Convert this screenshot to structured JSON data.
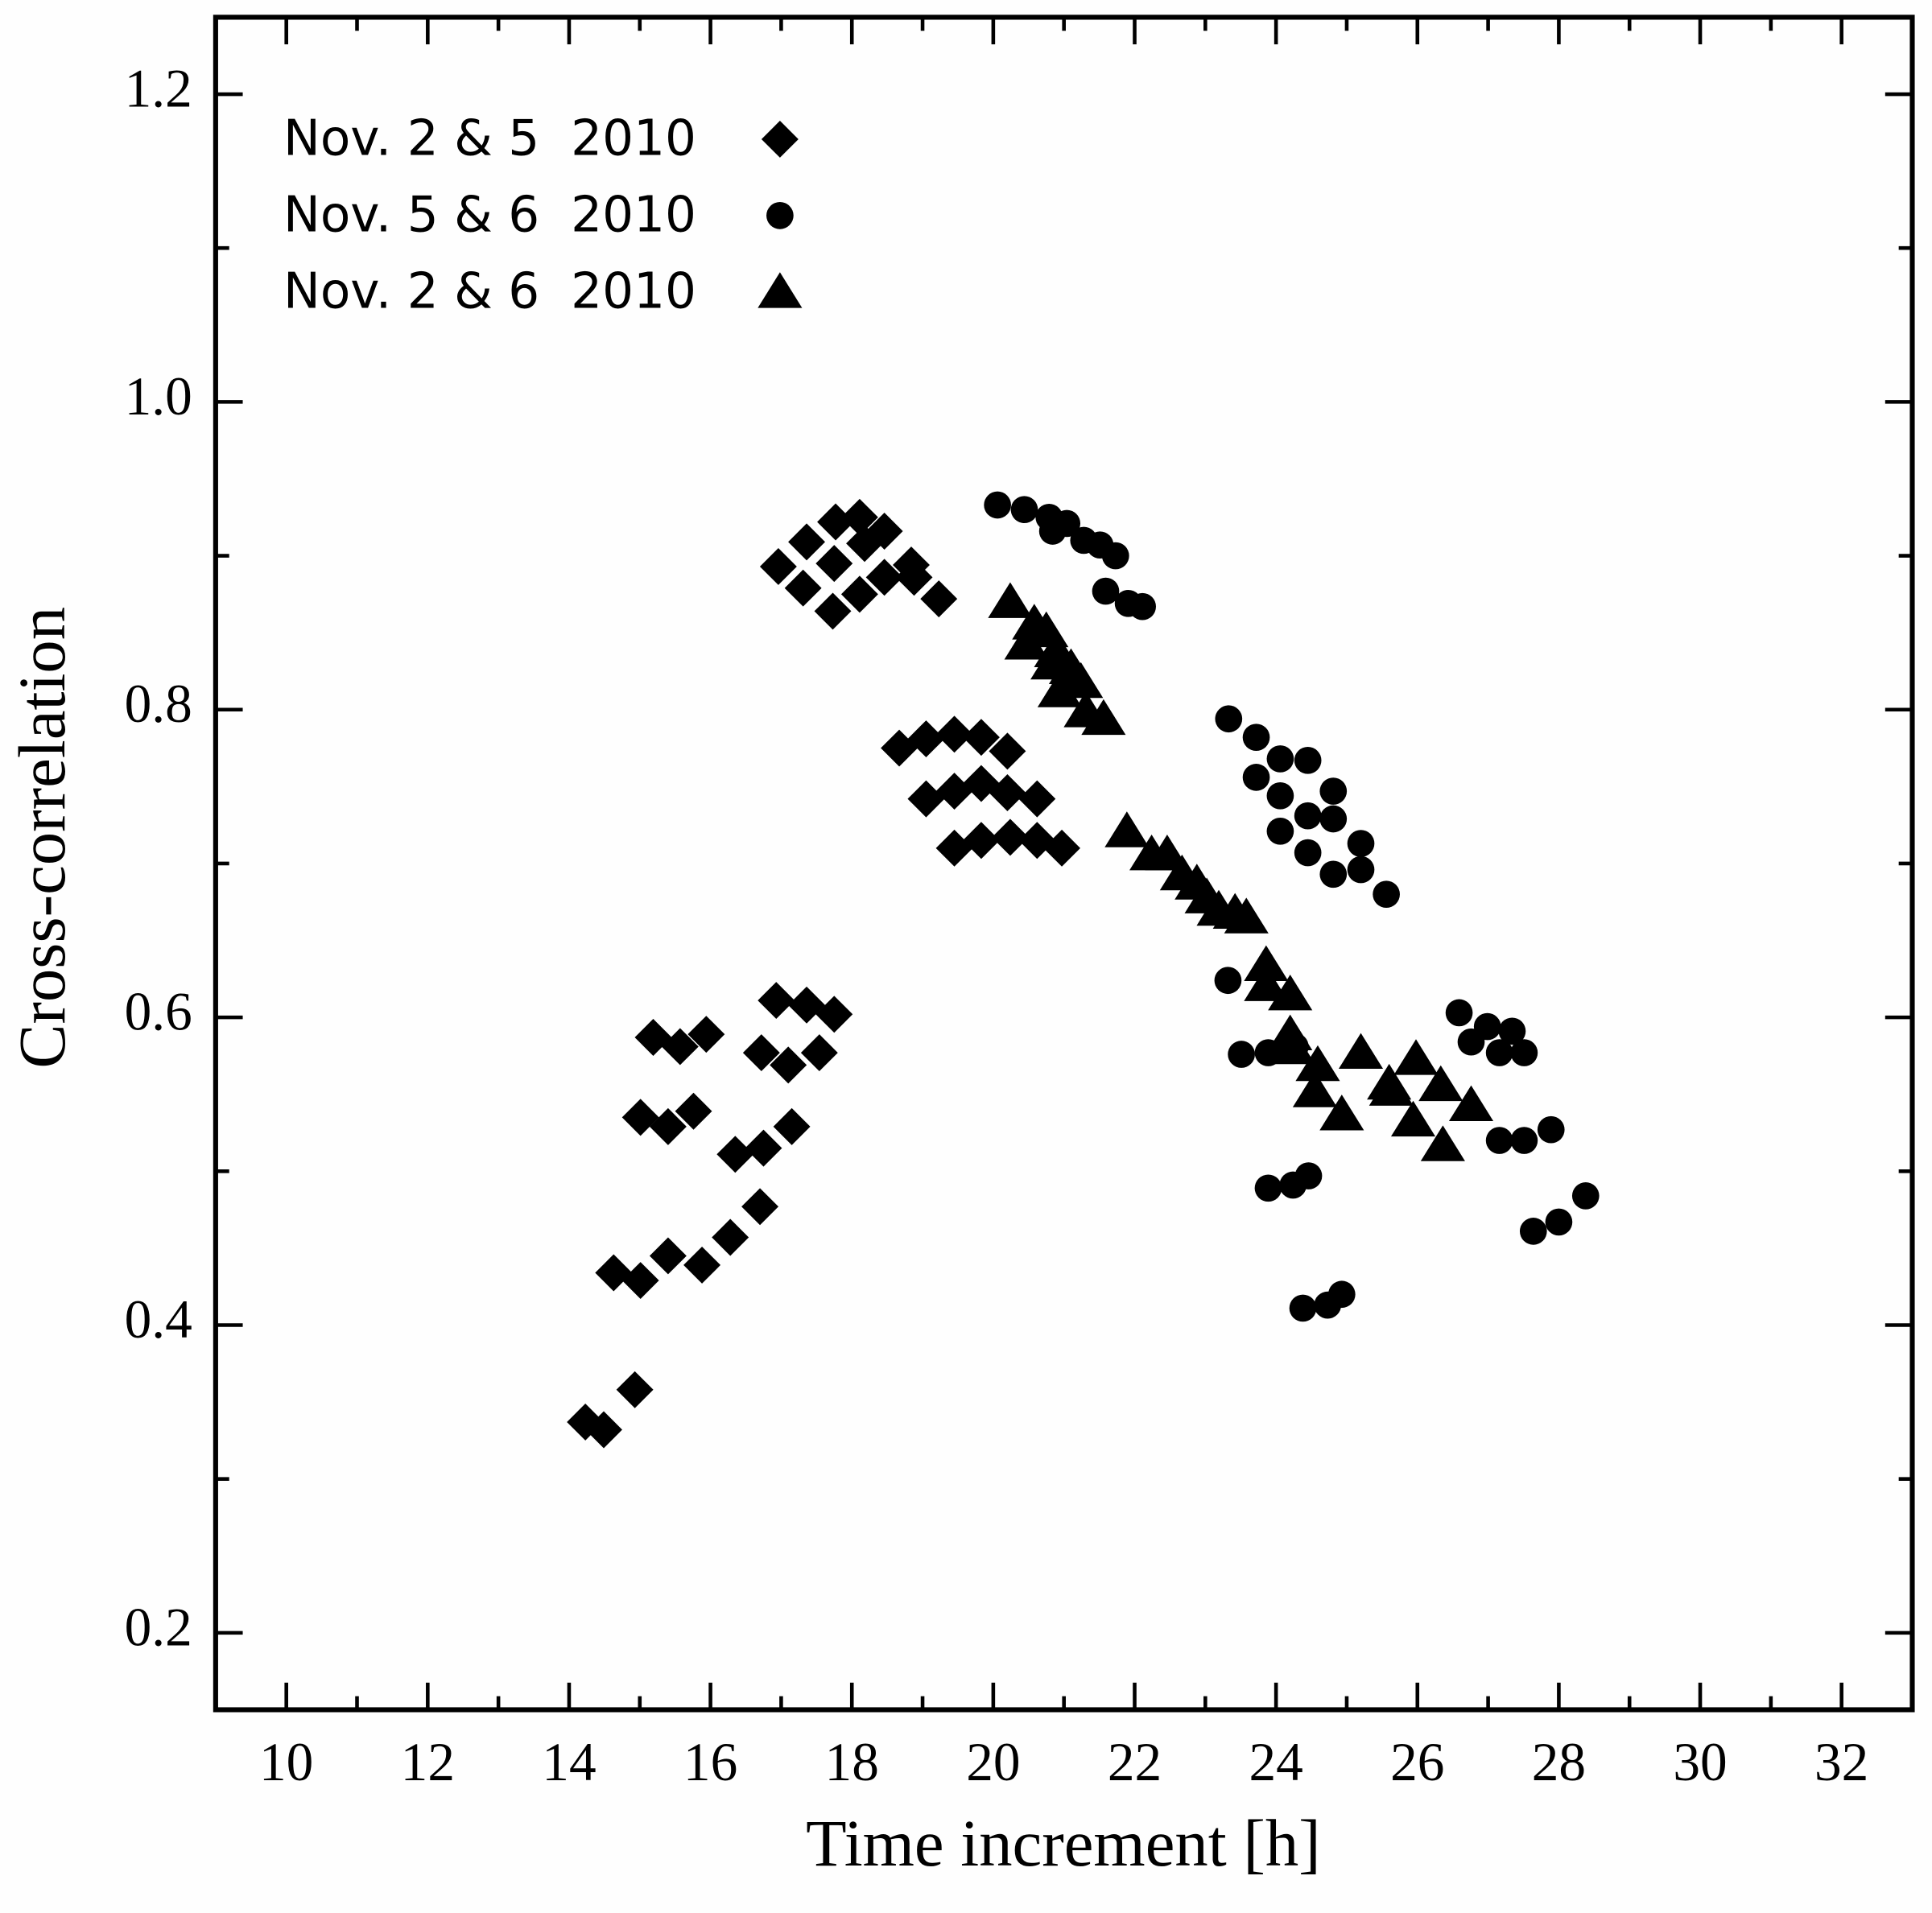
{
  "chart_data": {
    "type": "scatter",
    "x_label": "Time increment [h]",
    "y_label": "Cross-correlation",
    "xlim": [
      9,
      33
    ],
    "ylim": [
      0.15,
      1.25
    ],
    "xticks": [
      10,
      12,
      14,
      16,
      18,
      20,
      22,
      24,
      26,
      28,
      30,
      32
    ],
    "minor_xticks": [
      11,
      13,
      15,
      17,
      19,
      21,
      23,
      25,
      27,
      29,
      31
    ],
    "yticks": [
      0.2,
      0.4,
      0.6,
      0.8,
      {
        "value": 1,
        "label": "1.0"
      },
      1.2
    ],
    "minor_yticks": [
      0.3,
      0.5,
      0.7,
      0.9,
      1.1
    ],
    "legend": "upper left",
    "series": [
      {
        "name": "Nov. 2 & 5  2010",
        "marker": "diamond",
        "color": "#000000",
        "x": [
          14.23,
          14.49,
          14.93,
          14.63,
          15.01,
          15.4,
          15.88,
          16.28,
          16.7,
          15.01,
          15.4,
          15.76,
          16.35,
          16.75,
          17.15,
          15.19,
          15.57,
          15.94,
          16.72,
          17.1,
          17.54,
          16.93,
          17.36,
          17.75,
          16.96,
          17.31,
          17.36,
          17.73,
          17.75,
          17.77,
          18.11,
          18.11,
          18.18,
          18.46,
          18.46,
          18.84,
          18.88,
          19.23,
          18.67,
          19.05,
          19.45,
          19.83,
          20.2,
          19.05,
          19.45,
          19.83,
          20.2,
          20.62,
          19.45,
          19.83,
          20.24,
          20.62,
          20.97
        ],
        "values": [
          0.337,
          0.332,
          0.358,
          0.434,
          0.429,
          0.445,
          0.439,
          0.457,
          0.477,
          0.535,
          0.529,
          0.539,
          0.511,
          0.515,
          0.529,
          0.587,
          0.581,
          0.589,
          0.577,
          0.569,
          0.577,
          0.611,
          0.608,
          0.602,
          0.893,
          0.879,
          0.909,
          0.864,
          0.895,
          0.922,
          0.925,
          0.875,
          0.908,
          0.916,
          0.886,
          0.894,
          0.886,
          0.872,
          0.775,
          0.781,
          0.784,
          0.782,
          0.773,
          0.742,
          0.747,
          0.752,
          0.746,
          0.742,
          0.71,
          0.715,
          0.717,
          0.715,
          0.71
        ]
      },
      {
        "name": "Nov. 5 & 6  2010",
        "marker": "circle",
        "color": "#000000",
        "x": [
          20.06,
          20.44,
          20.79,
          20.84,
          21.04,
          21.28,
          21.51,
          21.73,
          21.59,
          21.91,
          22.11,
          23.33,
          23.72,
          23.72,
          24.06,
          24.06,
          24.06,
          24.45,
          24.45,
          24.45,
          24.81,
          24.81,
          24.81,
          25.2,
          25.2,
          25.56,
          23.32,
          23.51,
          23.89,
          24.27,
          23.89,
          24.24,
          24.46,
          24.38,
          24.73,
          24.93,
          26.59,
          26.76,
          26.99,
          27.16,
          27.34,
          27.51,
          27.16,
          27.51,
          27.89,
          27.64,
          28.0,
          28.38
        ],
        "values": [
          0.933,
          0.93,
          0.925,
          0.916,
          0.921,
          0.91,
          0.907,
          0.9,
          0.877,
          0.869,
          0.867,
          0.794,
          0.782,
          0.756,
          0.768,
          0.744,
          0.721,
          0.767,
          0.731,
          0.707,
          0.747,
          0.729,
          0.693,
          0.713,
          0.696,
          0.68,
          0.624,
          0.576,
          0.577,
          0.581,
          0.489,
          0.491,
          0.497,
          0.411,
          0.413,
          0.42,
          0.603,
          0.584,
          0.594,
          0.577,
          0.591,
          0.577,
          0.52,
          0.52,
          0.527,
          0.461,
          0.467,
          0.484
        ]
      },
      {
        "name": "Nov. 2 & 6  2010",
        "marker": "triangle",
        "color": "#000000",
        "x": [
          20.24,
          20.58,
          20.75,
          20.47,
          20.89,
          21.1,
          20.84,
          21.24,
          20.94,
          21.31,
          21.56,
          21.89,
          22.24,
          22.46,
          22.67,
          22.88,
          23.02,
          23.19,
          23.42,
          23.58,
          23.86,
          23.86,
          24.2,
          24.2,
          24.24,
          24.59,
          24.55,
          24.93,
          25.2,
          25.6,
          25.63,
          25.98,
          25.94,
          26.33,
          26.36,
          26.76
        ],
        "values": [
          0.87,
          0.856,
          0.851,
          0.843,
          0.838,
          0.827,
          0.83,
          0.818,
          0.812,
          0.799,
          0.794,
          0.721,
          0.706,
          0.706,
          0.693,
          0.687,
          0.678,
          0.67,
          0.668,
          0.665,
          0.634,
          0.621,
          0.615,
          0.589,
          0.58,
          0.569,
          0.552,
          0.537,
          0.577,
          0.557,
          0.553,
          0.573,
          0.533,
          0.556,
          0.517,
          0.543
        ]
      }
    ]
  }
}
